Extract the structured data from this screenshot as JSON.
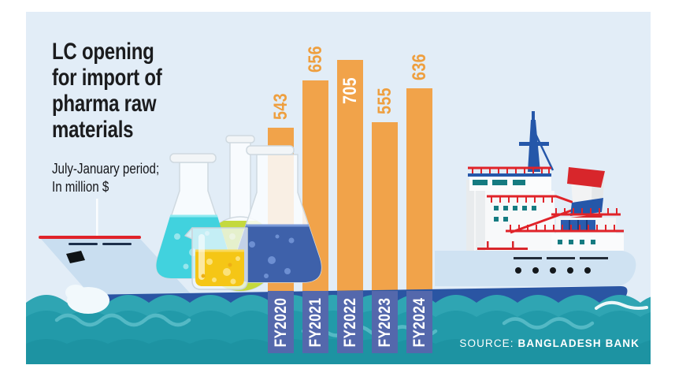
{
  "header": {
    "title": "LC opening\nfor import of\npharma raw\nmaterials",
    "subtitle": "July-January period;\nIn million $"
  },
  "chart_data": {
    "type": "bar",
    "title": "LC opening for import of pharma raw materials",
    "subtitle": "July-January period; In million $",
    "categories": [
      "FY2020",
      "FY2021",
      "FY2022",
      "FY2023",
      "FY2024"
    ],
    "values": [
      543,
      656,
      705,
      555,
      636
    ],
    "unit": "million $",
    "value_label_placement": [
      "above",
      "above",
      "inside",
      "above",
      "above"
    ],
    "ylim": [
      0,
      705
    ],
    "grid": false,
    "legend": "none",
    "orientation": "vertical"
  },
  "source": {
    "prefix": "SOURCE:",
    "name": "BANGLADESH BANK"
  },
  "colors": {
    "background": "#e2edf7",
    "bar": "#f1a34a",
    "value_label": "#ee9f3f",
    "value_label_inside": "#ffffff",
    "category_box": "#5468ac",
    "category_text": "#ffffff",
    "water_light": "#2fa5b3",
    "water_main": "#229aa9",
    "water_deep": "#1d93a2",
    "hull_dark_blue": "#2a55a3",
    "ship_hull_light": "#cfe2f2",
    "accent_red": "#e02329",
    "title_text": "#1b1c1e",
    "source_text": "#ffffff"
  },
  "illustrations": [
    "cargo-ship",
    "ship-bow",
    "lab-flasks",
    "sea-waves"
  ]
}
